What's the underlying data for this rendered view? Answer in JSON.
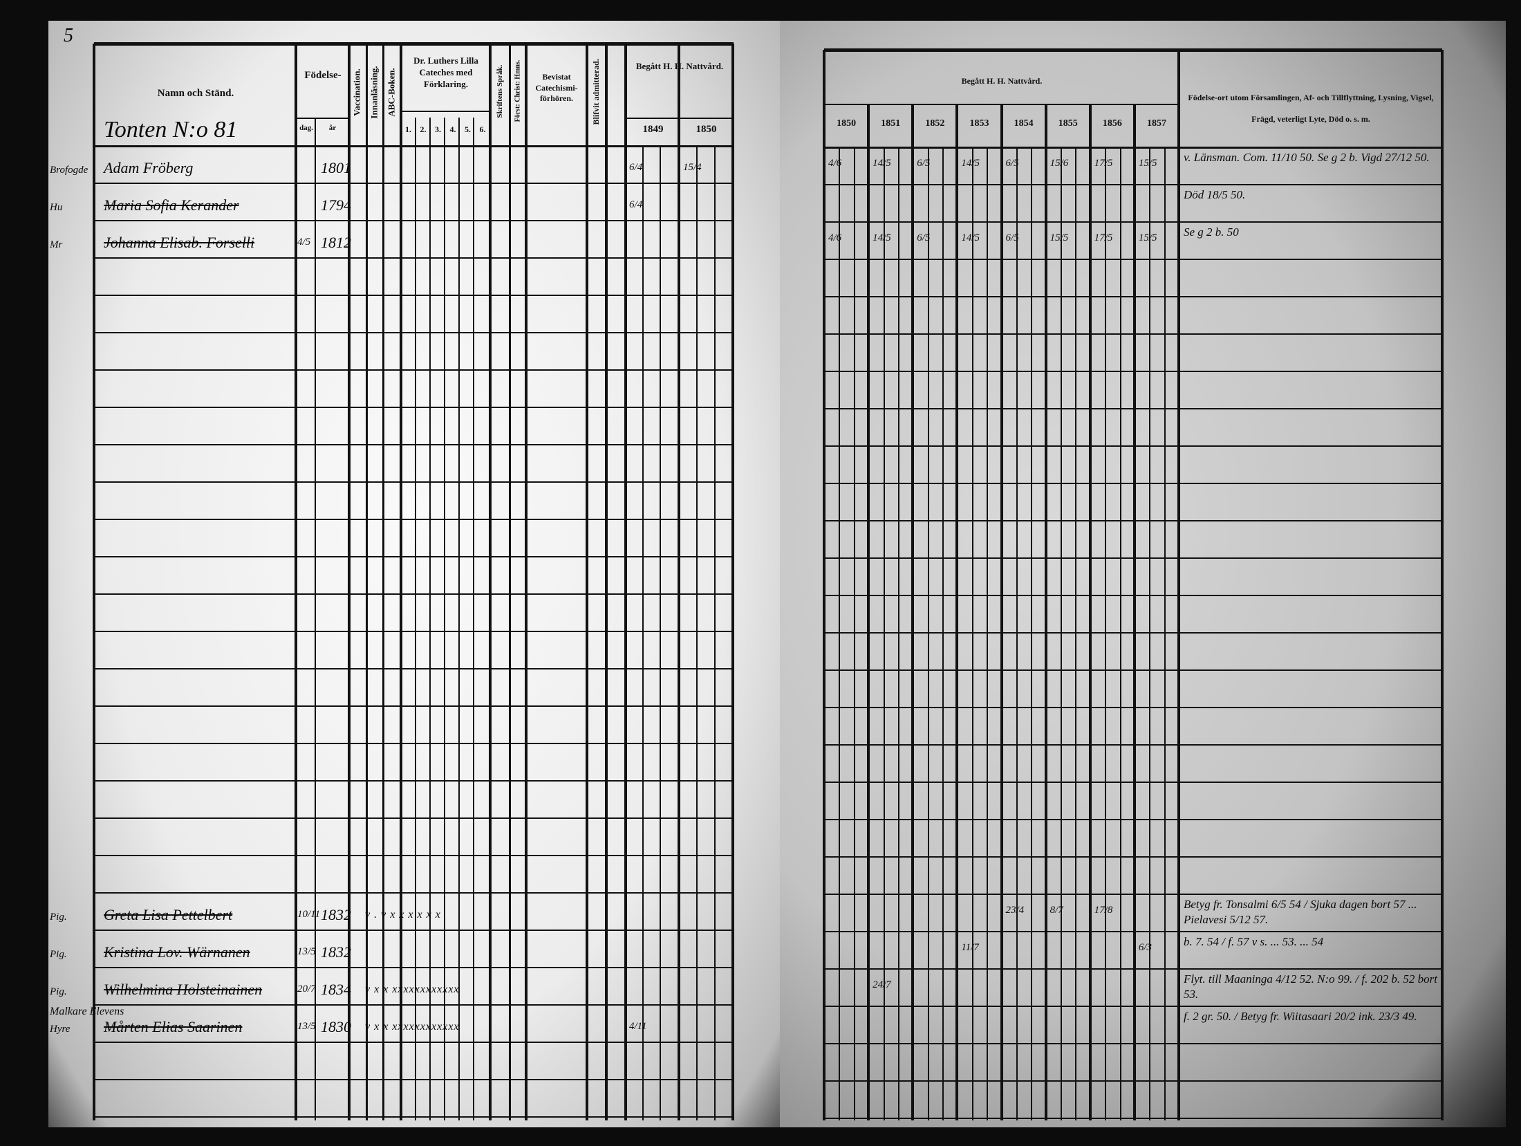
{
  "page_number": "5",
  "left_page": {
    "header": {
      "name_col": "Namn och Ständ.",
      "birth": "Födelse-",
      "birth_day": "dag.",
      "birth_year": "år",
      "vaccination": "Vaccination.",
      "reading": "Innanläsning.",
      "abc": "ABC-Boken.",
      "luther": "Dr. Luthers Lilla Cateches med Förklaring.",
      "luther_parts": [
        "1.",
        "2.",
        "3.",
        "4.",
        "5.",
        "6."
      ],
      "scripture": "Skriftens Språk.",
      "christ": "Först: Christ: Hmns.",
      "attended": "Bevistat Catechismi-förhören.",
      "admitted": "Blifvit admitterad.",
      "communion": "Begått H. H. Nattvård.",
      "communion_years": [
        "1849",
        "1850"
      ]
    },
    "house": "Tonten N:o 81",
    "entries": [
      {
        "row": 0,
        "title": "Brofogde",
        "name": "Adam Fröberg",
        "day": "",
        "year": "1801",
        "marks": "",
        "communion": [
          "6/4",
          "15/4"
        ]
      },
      {
        "row": 1,
        "title": "Hu",
        "name": "Maria Sofia Kerander",
        "day": "",
        "year": "1794",
        "marks": "",
        "communion": [
          "6/4",
          ""
        ]
      },
      {
        "row": 2,
        "title": "Mr",
        "name": "Johanna Elisab. Forselli",
        "day": "4/5",
        "year": "1812",
        "marks": "",
        "communion": [
          "",
          ""
        ]
      },
      {
        "row": 20,
        "title": "Pig.",
        "name": "Greta Lisa Pettelbert",
        "day": "10/11",
        "year": "1832",
        "marks": "v  .  v x x x x x x",
        "communion": [
          "",
          ""
        ]
      },
      {
        "row": 21,
        "title": "Pig.",
        "name": "Kristina Lov. Wärnanen",
        "day": "13/5",
        "year": "1832",
        "marks": "",
        "communion": [
          "",
          ""
        ]
      },
      {
        "row": 22,
        "title": "Pig.",
        "name": "Wilhelmina Holsteinainen",
        "day": "20/7",
        "year": "1834",
        "marks": "v  x  x xxxxxxxxxxxx",
        "communion": [
          "",
          ""
        ]
      },
      {
        "row": 23,
        "title": "Hyre",
        "name": "Mårten Elias Saarinen",
        "day": "13/5",
        "year": "1830",
        "marks": "v  x  x xxxxxxxxxxxx",
        "communion": [
          "4/11",
          ""
        ],
        "note_above": "Malkare Elevens"
      }
    ]
  },
  "right_page": {
    "header": {
      "communion": "Begått H. H. Nattvård.",
      "years": [
        "1850",
        "1851",
        "1852",
        "1853",
        "1854",
        "1855",
        "1856",
        "1857"
      ],
      "remarks": "Födelse-ort utom Församlingen, Af- och Tillflyttning, Lysning, Vigsel, Frägd, veterligt Lyte, Död o. s. m."
    },
    "communion_marks": [
      {
        "row": 0,
        "values": [
          "4/6",
          "14/5",
          "6/5",
          "14/5",
          "6/5",
          "15/6",
          "17/5",
          "15/5"
        ]
      },
      {
        "row": 2,
        "values": [
          "4/6",
          "14/5",
          "6/5",
          "14/5",
          "6/5",
          "15/5",
          "17/5",
          "15/5"
        ]
      },
      {
        "row": 20,
        "values": [
          "",
          "",
          "",
          "",
          "23/4",
          "8/7",
          "17/8",
          ""
        ]
      },
      {
        "row": 21,
        "values": [
          "",
          "",
          "",
          "11/7",
          "",
          "",
          "",
          "6/3"
        ]
      },
      {
        "row": 22,
        "values": [
          "",
          "24/7",
          "",
          "",
          "",
          "",
          "",
          ""
        ]
      }
    ],
    "remarks": [
      {
        "row": 0,
        "text": "v. Länsman. Com. 11/10 50. Se g 2 b. Vigd 27/12 50."
      },
      {
        "row": 1,
        "text": "Död 18/5 50."
      },
      {
        "row": 2,
        "text": "Se g 2 b. 50"
      },
      {
        "row": 20,
        "text": "Betyg fr. Tonsalmi 6/5 54 / Sjuka dagen bort 57 ... Pielavesi 5/12 57."
      },
      {
        "row": 21,
        "text": "b. 7. 54 / f. 57 v s. ... 53. ... 54"
      },
      {
        "row": 22,
        "text": "Flyt. till Maaninga 4/12 52. N:o 99. / f. 202 b. 52 bort 53."
      },
      {
        "row": 23,
        "text": "f. 2 gr. 50. / Betyg fr. Wiitasaari 20/2 ink. 23/3 49."
      }
    ]
  }
}
